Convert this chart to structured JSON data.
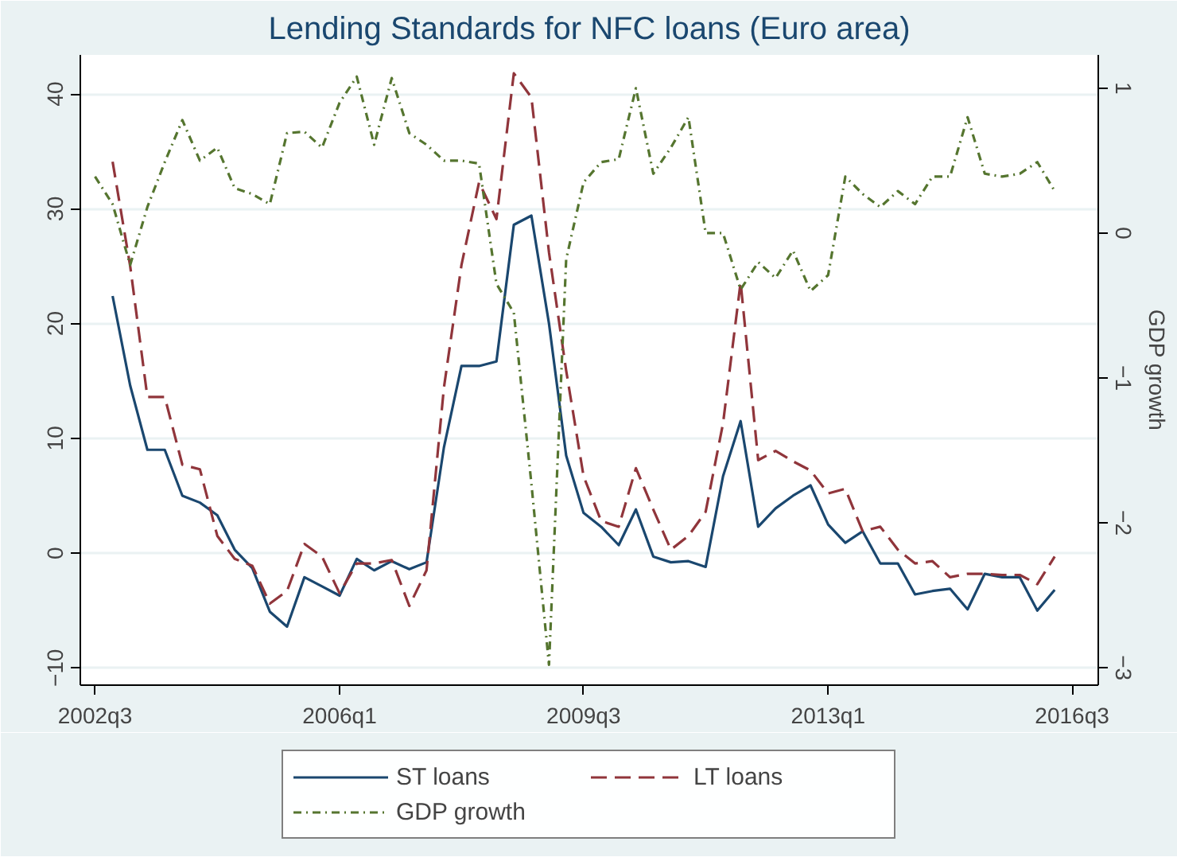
{
  "chart_data": {
    "type": "line",
    "title": "Lending Standards for NFC loans (Euro area)",
    "y2label": "GDP growth",
    "x": [
      "2002-07",
      "2002-10",
      "2003-01",
      "2003-04",
      "2003-07",
      "2003-10",
      "2004-01",
      "2004-04",
      "2004-07",
      "2004-10",
      "2005-01",
      "2005-04",
      "2005-07",
      "2005-10",
      "2006-01",
      "2006-04",
      "2006-07",
      "2006-10",
      "2007-01",
      "2007-04",
      "2007-07",
      "2007-10",
      "2008-01",
      "2008-04",
      "2008-07",
      "2008-10",
      "2009-01",
      "2009-04",
      "2009-07",
      "2009-10",
      "2010-01",
      "2010-04",
      "2010-07",
      "2010-10",
      "2011-01",
      "2011-04",
      "2011-07",
      "2011-10",
      "2012-01",
      "2012-04",
      "2012-07",
      "2012-10",
      "2013-01",
      "2013-04",
      "2013-07",
      "2013-10",
      "2014-01",
      "2014-04",
      "2014-07",
      "2014-10",
      "2015-01",
      "2015-04",
      "2015-07",
      "2015-10",
      "2016-01",
      "2016-04"
    ],
    "series": [
      {
        "name": "ST loans",
        "color": "#1a476f",
        "line_style": "solid",
        "values": [
          null,
          22.4,
          14.6,
          9.0,
          9.0,
          5.0,
          4.4,
          3.3,
          0.3,
          -1.3,
          -5.1,
          -6.4,
          -2.1,
          -2.9,
          -3.7,
          -0.5,
          -1.5,
          -0.7,
          -1.4,
          -0.8,
          9.2,
          16.3,
          16.3,
          16.7,
          28.6,
          29.4,
          20.0,
          8.5,
          3.5,
          2.3,
          0.7,
          3.8,
          -0.3,
          -0.8,
          -0.7,
          -1.2,
          6.7,
          11.5,
          2.3,
          3.9,
          5.0,
          5.9,
          2.5,
          0.9,
          1.9,
          -0.9,
          -0.9,
          -3.6,
          -3.3,
          -3.1,
          -4.9,
          -1.8,
          -2.1,
          -2.1,
          -5.0,
          -3.2
        ]
      },
      {
        "name": "LT loans",
        "color": "#90353b",
        "line_style": "dashed",
        "values": [
          null,
          34.1,
          25,
          13.6,
          13.6,
          7.7,
          7.3,
          1.5,
          -0.5,
          -1.1,
          -4.4,
          -3.3,
          0.8,
          -0.3,
          -3.5,
          -0.9,
          -0.9,
          -0.6,
          -4.6,
          -1.5,
          14.4,
          25.1,
          32.3,
          29.1,
          41.8,
          39.7,
          26.2,
          15.9,
          6.7,
          2.8,
          2.3,
          7.4,
          3.8,
          0.3,
          1.5,
          3.6,
          11.3,
          23.6,
          8.1,
          8.9,
          8.0,
          7.2,
          5.2,
          5.6,
          1.9,
          2.3,
          0.3,
          -0.9,
          -0.7,
          -2.1,
          -1.8,
          -1.8,
          -1.9,
          -1.9,
          -2.7,
          -0.3
        ]
      },
      {
        "name": "GDP growth",
        "color": "#55752f",
        "line_style": "dotted",
        "axis": "y2",
        "values": [
          0.39,
          0.2,
          -0.22,
          0.18,
          0.49,
          0.78,
          0.5,
          0.59,
          0.31,
          0.27,
          0.2,
          0.69,
          0.7,
          0.59,
          0.9,
          1.08,
          0.61,
          1.07,
          0.69,
          0.61,
          0.5,
          0.5,
          0.48,
          -0.35,
          -0.55,
          -1.73,
          -2.98,
          -0.18,
          0.35,
          0.49,
          0.51,
          1.0,
          0.41,
          0.59,
          0.8,
          0.0,
          0.0,
          -0.39,
          -0.2,
          -0.31,
          -0.12,
          -0.4,
          -0.29,
          0.39,
          0.27,
          0.18,
          0.29,
          0.2,
          0.39,
          0.39,
          0.8,
          0.41,
          0.39,
          0.41,
          0.49,
          0.29
        ]
      }
    ],
    "xlim": [
      "2002-04-15",
      "2016-11-15"
    ],
    "xticks": [
      {
        "value": "2002-07",
        "label": "2002q3"
      },
      {
        "value": "2006-01",
        "label": "2006q1"
      },
      {
        "value": "2009-07",
        "label": "2009q3"
      },
      {
        "value": "2013-01",
        "label": "2013q1"
      },
      {
        "value": "2016-07",
        "label": "2016q3"
      }
    ],
    "ylim": [
      -11.5,
      43.4
    ],
    "yticks": [
      -10,
      0,
      10,
      20,
      30,
      40
    ],
    "y2lim": [
      -3.12,
      1.23
    ],
    "y2ticks": [
      -3,
      -2,
      -1,
      0,
      1
    ],
    "grid": "y",
    "legend": "bottom"
  }
}
